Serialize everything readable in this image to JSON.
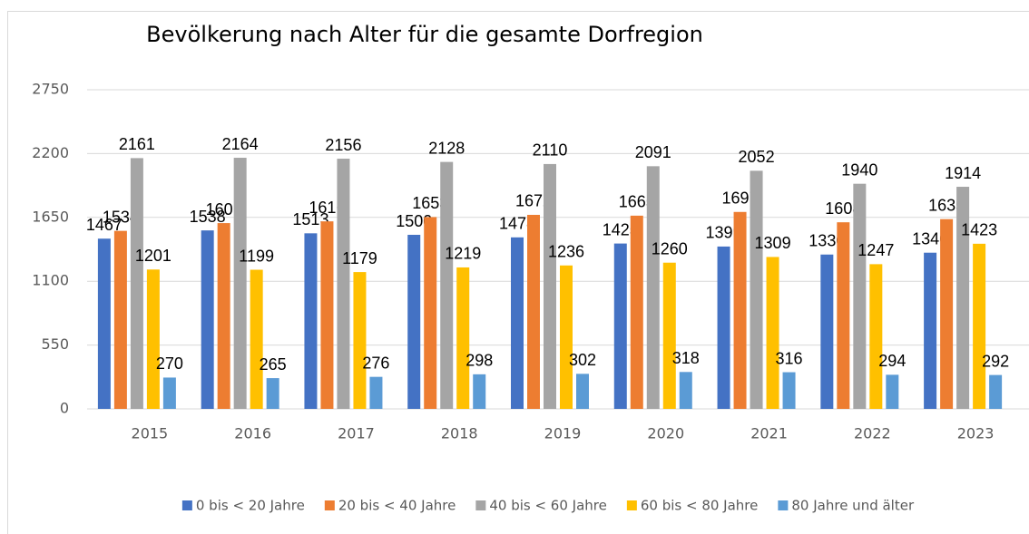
{
  "chart_data": {
    "type": "bar",
    "title": "Bevölkerung nach Alter für die gesamte Dorfregion",
    "categories": [
      "2015",
      "2016",
      "2017",
      "2018",
      "2019",
      "2020",
      "2021",
      "2022",
      "2023"
    ],
    "series": [
      {
        "name": "0 bis < 20 Jahre",
        "color": "#4472c4",
        "values": [
          1467,
          1538,
          1513,
          1500,
          1478,
          1425,
          1399,
          1330,
          1346
        ]
      },
      {
        "name": "20 bis < 40 Jahre",
        "color": "#ed7d31",
        "values": [
          1534,
          1601,
          1616,
          1653,
          1672,
          1665,
          1697,
          1608,
          1635
        ]
      },
      {
        "name": "40 bis < 60 Jahre",
        "color": "#a5a5a5",
        "values": [
          2161,
          2164,
          2156,
          2128,
          2110,
          2091,
          2052,
          1940,
          1914
        ]
      },
      {
        "name": "60 bis < 80 Jahre",
        "color": "#ffc000",
        "values": [
          1201,
          1199,
          1179,
          1219,
          1236,
          1260,
          1309,
          1247,
          1423
        ]
      },
      {
        "name": "80 Jahre und älter",
        "color": "#5b9bd5",
        "values": [
          270,
          265,
          276,
          298,
          302,
          318,
          316,
          294,
          292
        ]
      }
    ],
    "ylim": [
      0,
      2750
    ],
    "yticks": [
      0,
      550,
      1100,
      1650,
      2200,
      2750
    ],
    "grid": true,
    "legend": "bottom"
  }
}
